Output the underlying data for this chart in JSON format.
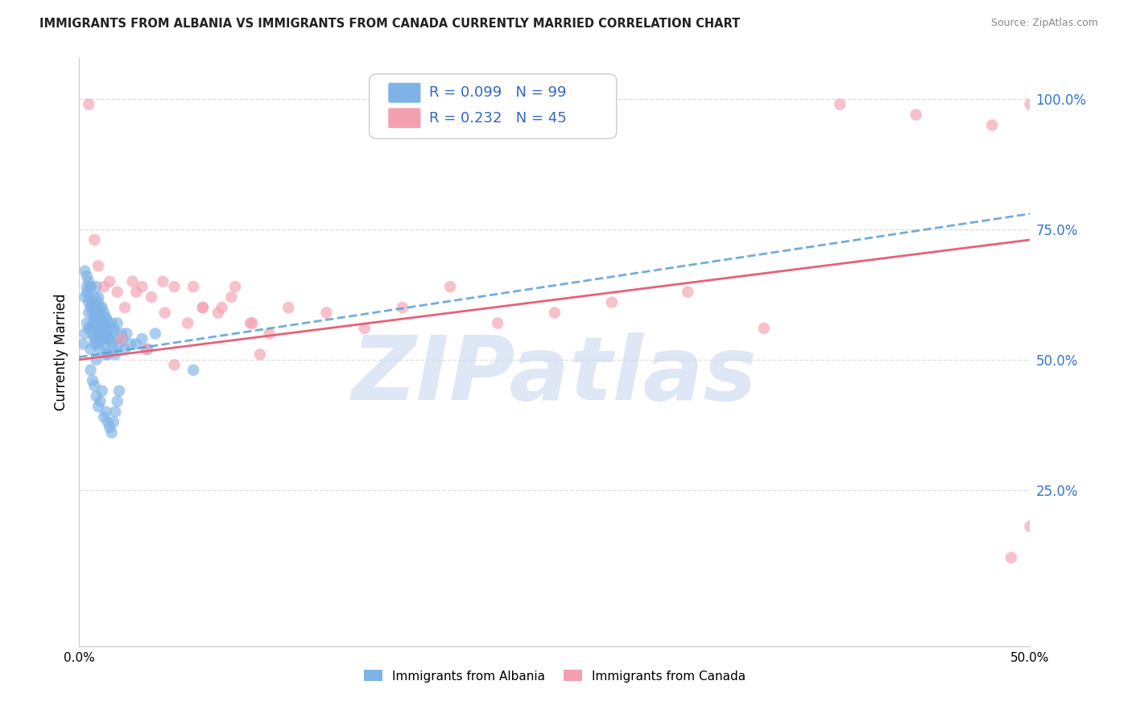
{
  "title": "IMMIGRANTS FROM ALBANIA VS IMMIGRANTS FROM CANADA CURRENTLY MARRIED CORRELATION CHART",
  "source": "Source: ZipAtlas.com",
  "ylabel": "Currently Married",
  "xlim": [
    0.0,
    0.5
  ],
  "ylim": [
    -0.05,
    1.08
  ],
  "plot_ylim": [
    -0.05,
    1.08
  ],
  "yticks": [
    0.25,
    0.5,
    0.75,
    1.0
  ],
  "ytick_labels": [
    "25.0%",
    "50.0%",
    "75.0%",
    "100.0%"
  ],
  "xticks": [
    0.0,
    0.1,
    0.2,
    0.3,
    0.4,
    0.5
  ],
  "xtick_labels": [
    "0.0%",
    "",
    "",
    "",
    "",
    "50.0%"
  ],
  "albania_R": 0.099,
  "albania_N": 99,
  "canada_R": 0.232,
  "canada_N": 45,
  "albania_color": "#7fb3e8",
  "canada_color": "#f4a0b0",
  "albania_line_color": "#5a9fd4",
  "canada_line_color": "#e8607a",
  "watermark": "ZIPatlas",
  "watermark_color": "#c8d8f0",
  "legend_label_1": "Immigrants from Albania",
  "legend_label_2": "Immigrants from Canada",
  "albania_line_x0": 0.0,
  "albania_line_y0": 0.505,
  "albania_line_x1": 0.5,
  "albania_line_y1": 0.78,
  "canada_line_x0": 0.0,
  "canada_line_y0": 0.5,
  "canada_line_x1": 0.5,
  "canada_line_y1": 0.73,
  "albania_x": [
    0.002,
    0.003,
    0.003,
    0.004,
    0.004,
    0.005,
    0.005,
    0.005,
    0.006,
    0.006,
    0.006,
    0.006,
    0.007,
    0.007,
    0.007,
    0.007,
    0.008,
    0.008,
    0.008,
    0.008,
    0.008,
    0.009,
    0.009,
    0.009,
    0.009,
    0.009,
    0.01,
    0.01,
    0.01,
    0.01,
    0.01,
    0.011,
    0.011,
    0.011,
    0.011,
    0.012,
    0.012,
    0.012,
    0.013,
    0.013,
    0.013,
    0.014,
    0.014,
    0.014,
    0.015,
    0.015,
    0.015,
    0.016,
    0.016,
    0.017,
    0.017,
    0.018,
    0.018,
    0.019,
    0.019,
    0.02,
    0.02,
    0.021,
    0.022,
    0.023,
    0.024,
    0.025,
    0.027,
    0.03,
    0.033,
    0.036,
    0.04,
    0.003,
    0.004,
    0.005,
    0.006,
    0.007,
    0.008,
    0.009,
    0.01,
    0.011,
    0.012,
    0.013,
    0.014,
    0.015,
    0.016,
    0.017,
    0.018,
    0.019,
    0.02,
    0.021,
    0.004,
    0.005,
    0.006,
    0.007,
    0.008,
    0.009,
    0.01,
    0.011,
    0.012,
    0.013,
    0.014,
    0.015,
    0.06
  ],
  "albania_y": [
    0.53,
    0.62,
    0.55,
    0.64,
    0.57,
    0.59,
    0.61,
    0.56,
    0.6,
    0.64,
    0.56,
    0.52,
    0.57,
    0.61,
    0.55,
    0.59,
    0.58,
    0.62,
    0.53,
    0.57,
    0.54,
    0.56,
    0.6,
    0.64,
    0.5,
    0.54,
    0.56,
    0.59,
    0.62,
    0.53,
    0.57,
    0.55,
    0.58,
    0.52,
    0.6,
    0.54,
    0.57,
    0.6,
    0.53,
    0.56,
    0.59,
    0.51,
    0.55,
    0.58,
    0.54,
    0.57,
    0.51,
    0.56,
    0.54,
    0.53,
    0.57,
    0.52,
    0.56,
    0.51,
    0.55,
    0.54,
    0.57,
    0.53,
    0.55,
    0.54,
    0.52,
    0.55,
    0.53,
    0.53,
    0.54,
    0.52,
    0.55,
    0.67,
    0.63,
    0.65,
    0.48,
    0.46,
    0.45,
    0.43,
    0.41,
    0.42,
    0.44,
    0.39,
    0.4,
    0.38,
    0.37,
    0.36,
    0.38,
    0.4,
    0.42,
    0.44,
    0.66,
    0.62,
    0.64,
    0.6,
    0.58,
    0.59,
    0.61,
    0.57,
    0.55,
    0.56,
    0.58,
    0.54,
    0.48
  ],
  "canada_x": [
    0.005,
    0.008,
    0.01,
    0.013,
    0.016,
    0.02,
    0.024,
    0.028,
    0.033,
    0.038,
    0.044,
    0.05,
    0.057,
    0.065,
    0.073,
    0.082,
    0.091,
    0.1,
    0.03,
    0.045,
    0.06,
    0.075,
    0.09,
    0.11,
    0.13,
    0.15,
    0.17,
    0.195,
    0.22,
    0.25,
    0.28,
    0.32,
    0.36,
    0.4,
    0.44,
    0.48,
    0.5,
    0.022,
    0.035,
    0.05,
    0.065,
    0.08,
    0.095,
    0.5,
    0.49
  ],
  "canada_y": [
    0.99,
    0.73,
    0.68,
    0.64,
    0.65,
    0.63,
    0.6,
    0.65,
    0.64,
    0.62,
    0.65,
    0.64,
    0.57,
    0.6,
    0.59,
    0.64,
    0.57,
    0.55,
    0.63,
    0.59,
    0.64,
    0.6,
    0.57,
    0.6,
    0.59,
    0.56,
    0.6,
    0.64,
    0.57,
    0.59,
    0.61,
    0.63,
    0.56,
    0.99,
    0.97,
    0.95,
    0.99,
    0.54,
    0.52,
    0.49,
    0.6,
    0.62,
    0.51,
    0.18,
    0.12
  ]
}
